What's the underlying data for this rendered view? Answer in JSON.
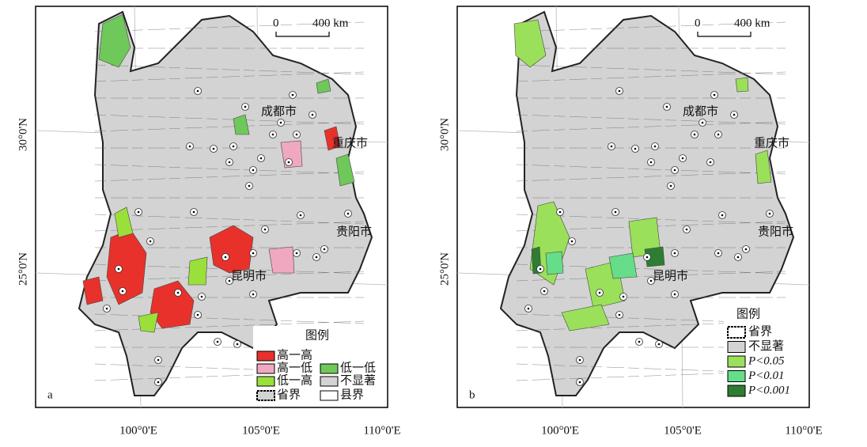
{
  "panels": [
    {
      "label": "a",
      "scale": {
        "zero": "0",
        "length": "400 km"
      },
      "cities": [
        "成都市",
        "重庆市",
        "贵阳市",
        "昆明市"
      ],
      "legend": {
        "title": "图例",
        "items": [
          "高一高",
          "高一低",
          "低一高",
          "省界",
          "低一低",
          "不显著",
          "县界"
        ]
      },
      "lat_labels": [
        "30°0'N",
        "25°0'N"
      ],
      "lon_labels": [
        "100°0'E",
        "105°0'E",
        "110°0'E"
      ]
    },
    {
      "label": "b",
      "scale": {
        "zero": "0",
        "length": "400 km"
      },
      "cities": [
        "成都市",
        "重庆市",
        "贵阳市",
        "昆明市"
      ],
      "legend": {
        "title": "图例",
        "items": [
          "省界",
          "不显著",
          "P<0.05",
          "P<0.01",
          "P<0.001"
        ]
      },
      "lat_labels": [
        "30°0'N",
        "25°0'N"
      ],
      "lon_labels": [
        "100°0'E",
        "105°0'E",
        "110°0'E"
      ]
    }
  ]
}
